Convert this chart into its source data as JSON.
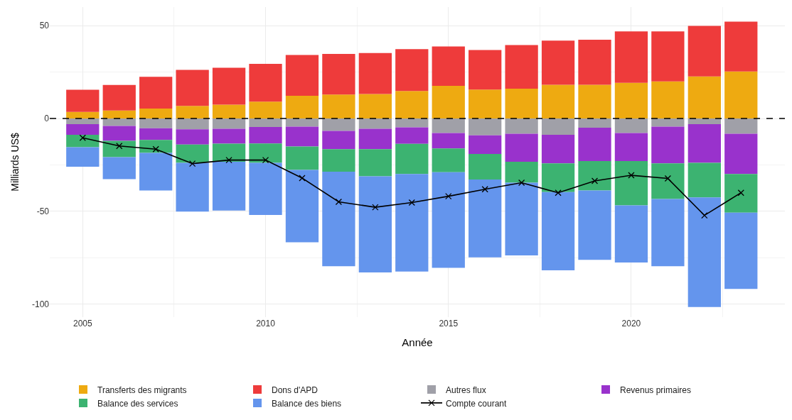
{
  "chart_data": {
    "type": "bar",
    "stacked": true,
    "xlabel": "Année",
    "ylabel": "Milliards US$",
    "x": [
      2005,
      2006,
      2007,
      2008,
      2009,
      2010,
      2011,
      2012,
      2013,
      2014,
      2015,
      2016,
      2017,
      2018,
      2019,
      2020,
      2021,
      2022,
      2023
    ],
    "series": [
      {
        "name": "Transferts des migrants",
        "color": "#eeaa11",
        "values": [
          3.5,
          4.3,
          5.4,
          6.8,
          7.5,
          9.1,
          12.2,
          12.9,
          13.2,
          14.8,
          17.6,
          15.6,
          16.1,
          18.2,
          18.2,
          19.2,
          20.0,
          22.6,
          25.3
        ]
      },
      {
        "name": "Dons d'APD",
        "color": "#ee3b3b",
        "values": [
          12.0,
          13.8,
          17.1,
          19.4,
          19.8,
          20.3,
          22.0,
          21.9,
          22.1,
          22.6,
          21.2,
          21.3,
          23.5,
          23.7,
          24.2,
          27.7,
          26.9,
          27.3,
          26.9
        ]
      },
      {
        "name": "Autres flux",
        "color": "#a0a0a8",
        "values": [
          -3.1,
          -4.0,
          -5.3,
          -5.8,
          -5.5,
          -4.6,
          -4.4,
          -6.7,
          -5.5,
          -4.8,
          -7.8,
          -9.1,
          -8.2,
          -8.8,
          -5.0,
          -7.8,
          -4.4,
          -3.1,
          -8.2
        ]
      },
      {
        "name": "Revenus primaires",
        "color": "#9932cc",
        "values": [
          -5.7,
          -8.0,
          -6.3,
          -8.2,
          -8.1,
          -8.9,
          -10.7,
          -9.8,
          -11.0,
          -8.9,
          -8.3,
          -10.0,
          -15.1,
          -15.4,
          -17.9,
          -15.1,
          -19.8,
          -20.8,
          -21.7
        ]
      },
      {
        "name": "Balance des services",
        "color": "#3cb371",
        "values": [
          -6.7,
          -8.8,
          -6.9,
          -9.9,
          -9.7,
          -10.4,
          -12.6,
          -12.2,
          -14.6,
          -16.2,
          -12.8,
          -13.8,
          -11.3,
          -15.4,
          -15.9,
          -23.9,
          -19.2,
          -18.6,
          -20.8
        ]
      },
      {
        "name": "Balance des biens",
        "color": "#6495ed",
        "values": [
          -10.5,
          -11.9,
          -20.3,
          -26.3,
          -26.3,
          -28.1,
          -39.0,
          -50.9,
          -51.8,
          -52.5,
          -51.5,
          -41.9,
          -39.2,
          -42.2,
          -37.3,
          -30.8,
          -36.2,
          -59.1,
          -41.1
        ]
      },
      {
        "name": "Compte courant",
        "type": "line",
        "color": "#000000",
        "marker": "cross",
        "values": [
          -10.4,
          -14.8,
          -16.5,
          -24.3,
          -22.4,
          -22.4,
          -32.1,
          -44.9,
          -47.8,
          -45.3,
          -41.9,
          -38.1,
          -34.6,
          -40.0,
          -33.6,
          -30.6,
          -32.3,
          -52.2,
          -40.0
        ]
      }
    ],
    "ref_lines": [
      {
        "axis": "y",
        "value": 0,
        "color": "#000000",
        "line_style": "dashed"
      }
    ],
    "xlim": [
      2004.1,
      2024.2
    ],
    "xticks": [
      2005,
      2010,
      2015,
      2020
    ],
    "ylim": [
      -107,
      60
    ],
    "yticks": [
      -100,
      -50,
      0,
      50
    ],
    "grid": true,
    "legend": "bottom"
  }
}
